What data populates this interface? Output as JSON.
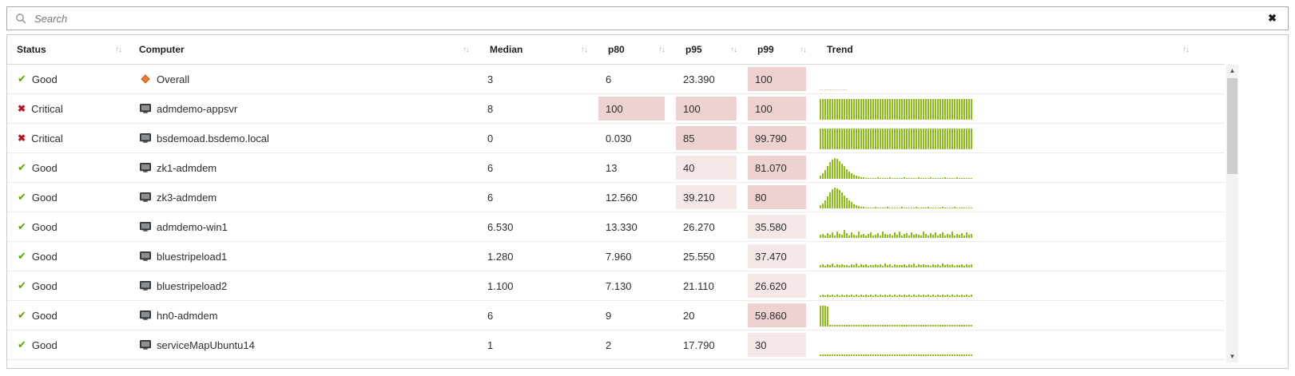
{
  "search": {
    "placeholder": "Search",
    "clear_label": "✖"
  },
  "scrollbar": {
    "up": "▲",
    "down": "▼"
  },
  "colors": {
    "good": "#5aa300",
    "critical": "#b81621",
    "bar": "#8cbd18",
    "diamond": "#ed7d31",
    "diamond_border": "#c55a11",
    "heat_light": "#f7e8e8",
    "heat_strong": "#eed2d2"
  },
  "table": {
    "columns": [
      {
        "key": "status",
        "label": "Status"
      },
      {
        "key": "computer",
        "label": "Computer"
      },
      {
        "key": "median",
        "label": "Median"
      },
      {
        "key": "p80",
        "label": "p80"
      },
      {
        "key": "p95",
        "label": "p95"
      },
      {
        "key": "p99",
        "label": "p99"
      },
      {
        "key": "trend",
        "label": "Trend"
      }
    ],
    "rows": [
      {
        "status": "Good",
        "status_kind": "good",
        "computer": "Overall",
        "icon": "diamond",
        "median": "3",
        "p80": "6",
        "p95": "23.390",
        "p99": "100",
        "heat": {
          "median": 0,
          "p80": 0,
          "p95": 0,
          "p99": 2
        },
        "trend": {
          "color": "#ddd39b",
          "bars": [
            2,
            2,
            2,
            2,
            2,
            2,
            2,
            2,
            2,
            2,
            2,
            2
          ]
        }
      },
      {
        "status": "Critical",
        "status_kind": "critical",
        "computer": "admdemo-appsvr",
        "icon": "computer",
        "median": "8",
        "p80": "100",
        "p95": "100",
        "p99": "100",
        "heat": {
          "median": 0,
          "p80": 2,
          "p95": 2,
          "p99": 2
        },
        "trend": {
          "bars": [
            100,
            100,
            100,
            100,
            100,
            100,
            100,
            100,
            100,
            100,
            100,
            100,
            100,
            100,
            100,
            100,
            100,
            100,
            100,
            100,
            100,
            100,
            100,
            100,
            100,
            100,
            100,
            100,
            100,
            100,
            100,
            100,
            100,
            100,
            100,
            100,
            100,
            100,
            100,
            100,
            100,
            100,
            100,
            100,
            100,
            100,
            100,
            100,
            100,
            100,
            100,
            100,
            100,
            100,
            100,
            100,
            100,
            100,
            100,
            100,
            100,
            100,
            100,
            100
          ]
        }
      },
      {
        "status": "Critical",
        "status_kind": "critical",
        "computer": "bsdemoad.bsdemo.local",
        "icon": "computer",
        "median": "0",
        "p80": "0.030",
        "p95": "85",
        "p99": "99.790",
        "heat": {
          "median": 0,
          "p80": 0,
          "p95": 2,
          "p99": 2
        },
        "trend": {
          "bars": [
            100,
            100,
            100,
            100,
            100,
            100,
            100,
            100,
            100,
            100,
            100,
            100,
            100,
            100,
            100,
            100,
            100,
            100,
            100,
            100,
            100,
            100,
            100,
            100,
            100,
            100,
            100,
            100,
            100,
            100,
            100,
            100,
            100,
            100,
            100,
            100,
            100,
            100,
            100,
            100,
            100,
            100,
            100,
            100,
            100,
            100,
            100,
            100,
            100,
            100,
            100,
            100,
            100,
            100,
            100,
            100,
            100,
            100,
            100,
            100,
            100,
            100,
            100,
            100
          ]
        }
      },
      {
        "status": "Good",
        "status_kind": "good",
        "computer": "zk1-admdem",
        "icon": "computer",
        "median": "6",
        "p80": "13",
        "p95": "40",
        "p99": "81.070",
        "heat": {
          "median": 0,
          "p80": 0,
          "p95": 1,
          "p99": 2
        },
        "trend": {
          "bars": [
            16,
            28,
            44,
            62,
            80,
            94,
            100,
            96,
            86,
            74,
            60,
            47,
            36,
            27,
            20,
            15,
            11,
            8,
            6,
            5,
            5,
            4,
            5,
            4,
            6,
            4,
            5,
            4,
            5,
            6,
            4,
            5,
            4,
            5,
            4,
            6,
            5,
            4,
            5,
            4,
            5,
            6,
            4,
            5,
            4,
            5,
            6,
            4,
            5,
            4,
            5,
            4,
            6,
            5,
            4,
            5,
            4,
            6,
            5,
            4,
            5,
            4,
            5,
            4
          ]
        }
      },
      {
        "status": "Good",
        "status_kind": "good",
        "computer": "zk3-admdem",
        "icon": "computer",
        "median": "6",
        "p80": "12.560",
        "p95": "39.210",
        "p99": "80",
        "heat": {
          "median": 0,
          "p80": 0,
          "p95": 1,
          "p99": 2
        },
        "trend": {
          "bars": [
            14,
            24,
            40,
            58,
            76,
            92,
            100,
            97,
            88,
            76,
            62,
            49,
            38,
            29,
            21,
            16,
            12,
            9,
            7,
            5,
            4,
            5,
            4,
            6,
            4,
            5,
            4,
            5,
            6,
            4,
            5,
            4,
            5,
            4,
            6,
            5,
            4,
            5,
            4,
            5,
            6,
            4,
            5,
            4,
            5,
            6,
            4,
            5,
            4,
            5,
            4,
            6,
            5,
            4,
            5,
            4,
            6,
            5,
            4,
            5,
            4,
            5,
            4,
            5
          ]
        }
      },
      {
        "status": "Good",
        "status_kind": "good",
        "computer": "admdemo-win1",
        "icon": "computer",
        "median": "6.530",
        "p80": "13.330",
        "p95": "26.270",
        "p99": "35.580",
        "heat": {
          "median": 0,
          "p80": 0,
          "p95": 0,
          "p99": 1
        },
        "trend": {
          "bars": [
            14,
            20,
            11,
            24,
            16,
            28,
            13,
            32,
            19,
            15,
            40,
            22,
            13,
            26,
            17,
            11,
            30,
            15,
            21,
            13,
            19,
            27,
            11,
            17,
            23,
            13,
            31,
            19,
            15,
            21,
            11,
            25,
            17,
            29,
            13,
            19,
            23,
            11,
            27,
            15,
            21,
            17,
            13,
            31,
            19,
            11,
            23,
            15,
            27,
            13,
            19,
            25,
            11,
            21,
            17,
            29,
            13,
            19,
            15,
            23,
            11,
            25,
            17,
            21
          ]
        }
      },
      {
        "status": "Good",
        "status_kind": "good",
        "computer": "bluestripeload1",
        "icon": "computer",
        "median": "1.280",
        "p80": "7.960",
        "p95": "25.550",
        "p99": "37.470",
        "heat": {
          "median": 0,
          "p80": 0,
          "p95": 0,
          "p99": 1
        },
        "trend": {
          "bars": [
            10,
            14,
            8,
            16,
            11,
            18,
            9,
            15,
            12,
            17,
            10,
            13,
            8,
            16,
            12,
            18,
            9,
            14,
            11,
            16,
            8,
            13,
            10,
            17,
            12,
            15,
            9,
            18,
            11,
            14,
            8,
            16,
            10,
            13,
            12,
            17,
            9,
            15,
            11,
            18,
            8,
            14,
            10,
            16,
            12,
            13,
            9,
            17,
            11,
            15,
            8,
            18,
            10,
            14,
            12,
            16,
            9,
            13,
            11,
            17,
            8,
            15,
            10,
            14
          ]
        }
      },
      {
        "status": "Good",
        "status_kind": "good",
        "computer": "bluestripeload2",
        "icon": "computer",
        "median": "1.100",
        "p80": "7.130",
        "p95": "21.110",
        "p99": "26.620",
        "heat": {
          "median": 0,
          "p80": 0,
          "p95": 0,
          "p99": 1
        },
        "trend": {
          "bars": [
            9,
            12,
            7,
            11,
            8,
            13,
            9,
            10,
            7,
            12,
            8,
            11,
            9,
            13,
            7,
            10,
            8,
            12,
            9,
            11,
            7,
            13,
            8,
            10,
            9,
            12,
            7,
            11,
            8,
            13,
            9,
            10,
            7,
            12,
            8,
            11,
            9,
            13,
            7,
            10,
            8,
            12,
            9,
            11,
            7,
            13,
            8,
            10,
            9,
            12,
            7,
            11,
            8,
            13,
            9,
            10,
            7,
            12,
            8,
            11,
            9,
            13,
            7,
            10
          ]
        }
      },
      {
        "status": "Good",
        "status_kind": "good",
        "computer": "hn0-admdem",
        "icon": "computer",
        "median": "6",
        "p80": "9",
        "p95": "20",
        "p99": "59.860",
        "heat": {
          "median": 0,
          "p80": 0,
          "p95": 0,
          "p99": 2
        },
        "trend": {
          "bars": [
            100,
            100,
            100,
            95,
            7,
            8,
            6,
            9,
            7,
            8,
            6,
            7,
            9,
            6,
            8,
            7,
            6,
            9,
            7,
            8,
            6,
            7,
            8,
            9,
            6,
            7,
            8,
            6,
            9,
            7,
            8,
            6,
            7,
            9,
            6,
            8,
            7,
            6,
            9,
            7,
            8,
            6,
            7,
            8,
            9,
            6,
            7,
            8,
            6,
            9,
            7,
            8,
            6,
            7,
            9,
            6,
            8,
            7,
            6,
            9,
            7,
            8,
            6,
            7
          ]
        }
      },
      {
        "status": "Good",
        "status_kind": "good",
        "computer": "serviceMapUbuntu14",
        "icon": "computer",
        "median": "1",
        "p80": "2",
        "p95": "17.790",
        "p99": "30",
        "heat": {
          "median": 0,
          "p80": 0,
          "p95": 0,
          "p99": 1
        },
        "trend": {
          "bars": [
            6,
            7,
            6,
            6,
            7,
            6,
            7,
            6,
            6,
            7,
            6,
            7,
            6,
            6,
            7,
            6,
            7,
            6,
            6,
            7,
            6,
            7,
            6,
            6,
            7,
            6,
            7,
            6,
            6,
            7,
            6,
            7,
            6,
            6,
            7,
            6,
            7,
            6,
            6,
            7,
            6,
            7,
            6,
            6,
            7,
            6,
            7,
            6,
            6,
            7,
            6,
            7,
            6,
            6,
            7,
            6,
            7,
            6,
            6,
            7,
            6,
            7,
            6,
            6
          ]
        }
      }
    ]
  }
}
